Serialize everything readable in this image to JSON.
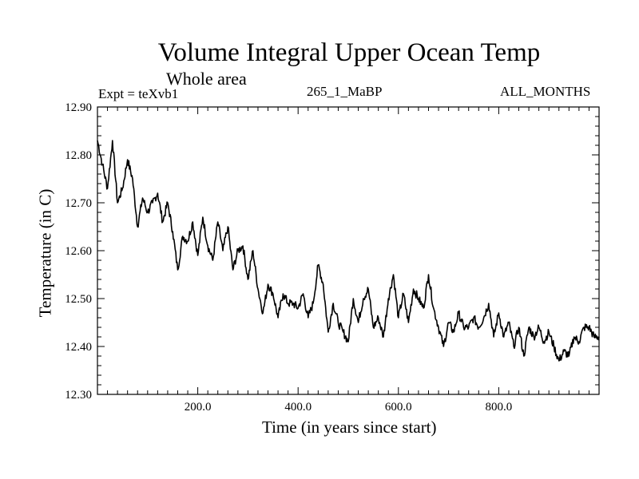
{
  "chart_data": {
    "type": "line",
    "title": "Volume Integral Upper Ocean Temp",
    "subtitle": "Whole area",
    "annotations": {
      "experiment": "Expt = teXvb1",
      "run": "265_1_MaBP",
      "months": "ALL_MONTHS"
    },
    "xlabel": "Time (in years since start)",
    "ylabel": "Temperature (in C)",
    "xlim": [
      0,
      1000
    ],
    "ylim": [
      12.3,
      12.9
    ],
    "x_ticks": [
      200,
      400,
      600,
      800
    ],
    "x_tick_labels": [
      "200.0",
      "400.0",
      "600.0",
      "800.0"
    ],
    "y_ticks": [
      12.3,
      12.4,
      12.5,
      12.6,
      12.7,
      12.8,
      12.9
    ],
    "y_tick_labels": [
      "12.30",
      "12.40",
      "12.50",
      "12.60",
      "12.70",
      "12.80",
      "12.90"
    ],
    "grid": false,
    "series": [
      {
        "name": "Volume Integral Upper Ocean Temp",
        "x": [
          0,
          10,
          20,
          30,
          40,
          50,
          60,
          70,
          80,
          90,
          100,
          110,
          120,
          130,
          140,
          150,
          160,
          170,
          180,
          190,
          200,
          210,
          220,
          230,
          240,
          250,
          260,
          270,
          280,
          290,
          300,
          310,
          320,
          330,
          340,
          350,
          360,
          370,
          380,
          390,
          400,
          410,
          420,
          430,
          440,
          450,
          460,
          470,
          480,
          490,
          500,
          510,
          520,
          530,
          540,
          550,
          560,
          570,
          580,
          590,
          600,
          610,
          620,
          630,
          640,
          650,
          660,
          670,
          680,
          690,
          700,
          710,
          720,
          730,
          740,
          750,
          760,
          770,
          780,
          790,
          800,
          810,
          820,
          830,
          840,
          850,
          860,
          870,
          880,
          890,
          900,
          910,
          920,
          930,
          940,
          950,
          960,
          970,
          980,
          990,
          1000
        ],
        "values": [
          12.83,
          12.78,
          12.73,
          12.83,
          12.7,
          12.73,
          12.79,
          12.75,
          12.65,
          12.71,
          12.68,
          12.7,
          12.72,
          12.66,
          12.7,
          12.64,
          12.56,
          12.63,
          12.62,
          12.66,
          12.59,
          12.67,
          12.61,
          12.58,
          12.66,
          12.6,
          12.65,
          12.56,
          12.6,
          12.61,
          12.54,
          12.6,
          12.52,
          12.47,
          12.53,
          12.51,
          12.46,
          12.51,
          12.49,
          12.49,
          12.48,
          12.51,
          12.46,
          12.49,
          12.57,
          12.53,
          12.43,
          12.49,
          12.45,
          12.43,
          12.41,
          12.5,
          12.45,
          12.5,
          12.52,
          12.44,
          12.46,
          12.42,
          12.5,
          12.55,
          12.46,
          12.51,
          12.45,
          12.52,
          12.5,
          12.48,
          12.55,
          12.48,
          12.44,
          12.4,
          12.45,
          12.43,
          12.47,
          12.44,
          12.44,
          12.46,
          12.44,
          12.46,
          12.49,
          12.42,
          12.47,
          12.42,
          12.45,
          12.4,
          12.44,
          12.38,
          12.44,
          12.42,
          12.44,
          12.41,
          12.43,
          12.4,
          12.37,
          12.39,
          12.38,
          12.42,
          12.41,
          12.44,
          12.44,
          12.42,
          12.42
        ]
      }
    ]
  }
}
